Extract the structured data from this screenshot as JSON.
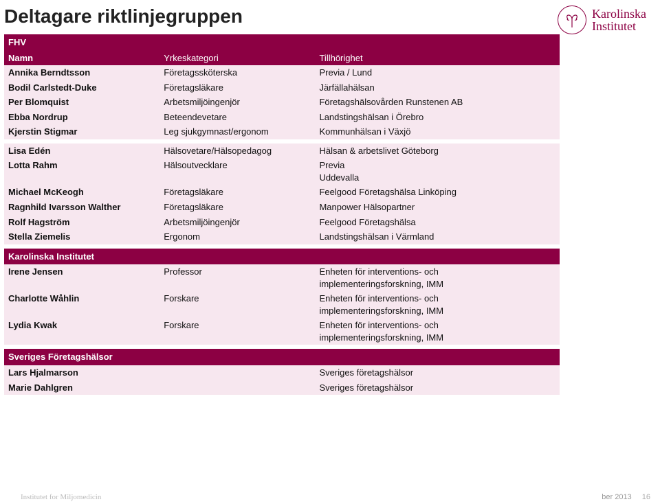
{
  "title": "Deltagare riktlinjegruppen",
  "logo": {
    "line1": "Karolinska",
    "line2": "Institutet"
  },
  "footer": {
    "date_fragment": "ber 2013",
    "page": "16",
    "left_text": "Institutet for Miljomedicin"
  },
  "table": {
    "background_color": "#f7e7ef",
    "section_color": "#8c0043",
    "text_color": "#111111",
    "section_text_color": "#ffffff",
    "columns": [
      "Namn",
      "Yrkeskategori",
      "Tillhörighet"
    ],
    "groups": [
      {
        "section": "FHV",
        "show_header": true,
        "rows": [
          [
            "Annika Berndtsson",
            "Företagssköterska",
            "Previa / Lund"
          ],
          [
            "Bodil Carlstedt-Duke",
            "Företagsläkare",
            "Järfällahälsan"
          ],
          [
            "Per Blomquist",
            "Arbetsmiljöingenjör",
            "Företagshälsovården Runstenen AB"
          ],
          [
            "Ebba Nordrup",
            "Beteendevetare",
            "Landstingshälsan i Örebro"
          ],
          [
            "Kjerstin Stigmar",
            "Leg sjukgymnast/ergonom",
            "Kommunhälsan i Växjö"
          ]
        ]
      },
      {
        "section": null,
        "show_header": false,
        "rows": [
          [
            "Lisa Edén",
            "Hälsovetare/Hälsopedagog",
            "Hälsan & arbetslivet Göteborg"
          ],
          [
            "Lotta Rahm",
            "Hälsoutvecklare",
            "Previa\nUddevalla"
          ],
          [
            "Michael McKeogh",
            "Företagsläkare",
            "Feelgood Företagshälsa Linköping"
          ],
          [
            "Ragnhild Ivarsson Walther",
            "Företagsläkare",
            "Manpower Hälsopartner"
          ],
          [
            "Rolf Hagström",
            "Arbetsmiljöingenjör",
            "Feelgood Företagshälsa"
          ],
          [
            "Stella Ziemelis",
            "Ergonom",
            "Landstingshälsan i Värmland"
          ]
        ]
      },
      {
        "section": "Karolinska Institutet",
        "show_header": false,
        "rows": [
          [
            "Irene Jensen",
            "Professor",
            "Enheten för interventions- och implementeringsforskning, IMM"
          ],
          [
            "Charlotte Wåhlin",
            "Forskare",
            "Enheten för interventions- och implementeringsforskning, IMM"
          ],
          [
            "Lydia Kwak",
            "Forskare",
            "Enheten för interventions- och implementeringsforskning, IMM"
          ]
        ]
      },
      {
        "section": "Sveriges Företagshälsor",
        "show_header": false,
        "rows": [
          [
            "Lars Hjalmarson",
            "",
            "Sveriges företagshälsor"
          ],
          [
            "Marie Dahlgren",
            "",
            "Sveriges företagshälsor"
          ]
        ]
      }
    ]
  }
}
